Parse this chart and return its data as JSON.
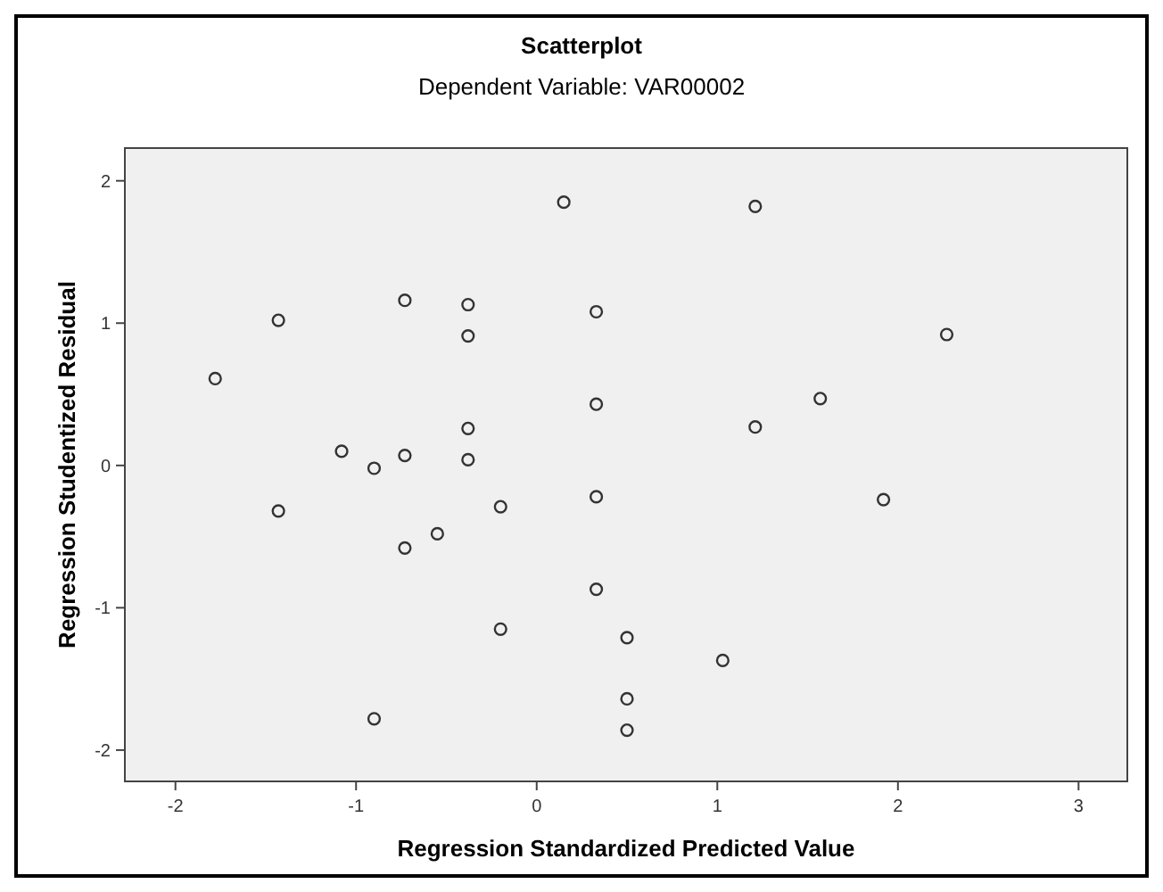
{
  "chart_data": {
    "type": "scatter",
    "title": "Scatterplot",
    "subtitle": "Dependent Variable: VAR00002",
    "xlabel": "Regression Standardized Predicted Value",
    "ylabel": "Regression Studentized Residual",
    "x": [
      0.15,
      -0.73,
      -0.38,
      -0.38,
      -1.43,
      -1.78,
      -1.08,
      -0.9,
      -0.73,
      -0.38,
      -0.38,
      -1.43,
      -0.2,
      -0.55,
      -0.73,
      -0.2,
      -0.9,
      1.21,
      0.33,
      2.27,
      0.33,
      1.57,
      1.21,
      0.33,
      1.92,
      0.33,
      0.5,
      1.03,
      0.5,
      0.5
    ],
    "values": [
      1.85,
      1.16,
      1.13,
      0.91,
      1.02,
      0.61,
      0.1,
      -0.02,
      0.07,
      0.26,
      0.04,
      -0.32,
      -0.29,
      -0.48,
      -0.58,
      -1.15,
      -1.78,
      1.82,
      1.08,
      0.92,
      0.43,
      0.47,
      0.27,
      -0.22,
      -0.24,
      -0.87,
      -1.21,
      -1.37,
      -1.64,
      -1.86
    ],
    "color": "#333333",
    "marker": "circle",
    "grid": false,
    "xlim": [
      -2.28,
      3.27
    ],
    "ylim": [
      -2.22,
      2.23
    ],
    "xticks": [
      -2,
      -1,
      0,
      1,
      2,
      3
    ],
    "yticks": [
      -2,
      -1,
      0,
      1,
      2
    ]
  }
}
